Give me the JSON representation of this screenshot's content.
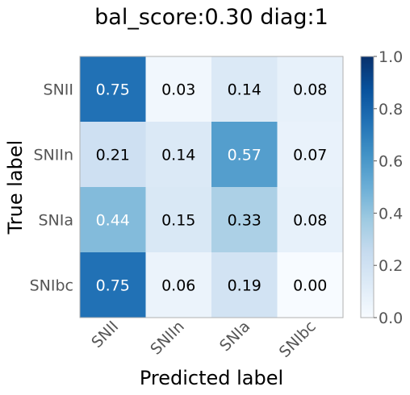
{
  "chart_data": {
    "type": "heatmap",
    "title": "bal_score:0.30 diag:1",
    "xlabel": "Predicted label",
    "ylabel": "True label",
    "row_labels": [
      "SNII",
      "SNIIn",
      "SNIa",
      "SNIbc"
    ],
    "col_labels": [
      "SNII",
      "SNIIn",
      "SNIa",
      "SNIbc"
    ],
    "values": [
      [
        0.75,
        0.03,
        0.14,
        0.08
      ],
      [
        0.21,
        0.14,
        0.57,
        0.07
      ],
      [
        0.44,
        0.15,
        0.33,
        0.08
      ],
      [
        0.75,
        0.06,
        0.19,
        0.0
      ]
    ],
    "cell_labels": [
      [
        "0.75",
        "0.03",
        "0.14",
        "0.08"
      ],
      [
        "0.21",
        "0.14",
        "0.57",
        "0.07"
      ],
      [
        "0.44",
        "0.15",
        "0.33",
        "0.08"
      ],
      [
        "0.75",
        "0.06",
        "0.19",
        "0.00"
      ]
    ],
    "colorbar": {
      "range": [
        0.0,
        1.0
      ],
      "ticks": [
        "0.0",
        "0.2",
        "0.4",
        "0.6",
        "0.8",
        "1.0"
      ],
      "colormap": "Blues"
    },
    "grid": false
  },
  "colors": {
    "cmap_stops": [
      "#f7fbff",
      "#deebf7",
      "#c6dbef",
      "#9ecae1",
      "#6baed6",
      "#4292c6",
      "#2171b5",
      "#08519c",
      "#08306b"
    ],
    "text_dark": "#000000",
    "text_light": "#ffffff",
    "label_gray": "#555555",
    "frame": "#b0b0b0"
  }
}
